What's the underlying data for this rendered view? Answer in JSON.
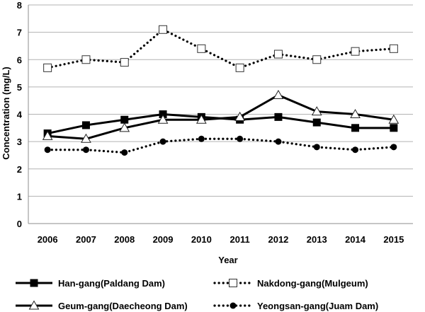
{
  "chart_data": {
    "type": "line",
    "xlabel": "Year",
    "ylabel": "Concentration (mg/L)",
    "ylim": [
      0,
      8
    ],
    "yticks": [
      "0",
      "1",
      "2",
      "3",
      "4",
      "5",
      "6",
      "7",
      "8"
    ],
    "categories": [
      "2006",
      "2007",
      "2008",
      "2009",
      "2010",
      "2011",
      "2012",
      "2013",
      "2014",
      "2015"
    ],
    "grid": "horizontal",
    "legend_position": "bottom",
    "series": [
      {
        "name": "Han-gang(Paldang Dam)",
        "marker": "square-filled",
        "line": "solid",
        "color": "#000000",
        "values": [
          3.3,
          3.6,
          3.8,
          4.0,
          3.9,
          3.8,
          3.9,
          3.7,
          3.5,
          3.5
        ]
      },
      {
        "name": "Nakdong-gang(Mulgeum)",
        "marker": "square-open",
        "line": "dotted",
        "color": "#000000",
        "values": [
          5.7,
          6.0,
          5.9,
          7.1,
          6.4,
          5.7,
          6.2,
          6.0,
          6.3,
          6.4
        ]
      },
      {
        "name": "Geum-gang(Daecheong Dam)",
        "marker": "triangle-open",
        "line": "solid",
        "color": "#000000",
        "values": [
          3.2,
          3.1,
          3.5,
          3.8,
          3.8,
          3.9,
          4.7,
          4.1,
          4.0,
          3.8
        ]
      },
      {
        "name": "Yeongsan-gang(Juam Dam)",
        "marker": "circle-filled",
        "line": "dotted",
        "color": "#000000",
        "values": [
          2.7,
          2.7,
          2.6,
          3.0,
          3.1,
          3.1,
          3.0,
          2.8,
          2.7,
          2.8
        ]
      }
    ]
  }
}
